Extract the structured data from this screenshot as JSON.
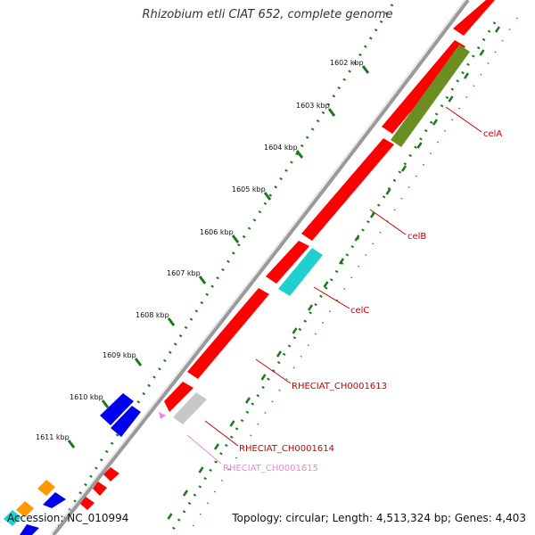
{
  "title": "Rhizobium etli CIAT 652, complete genome",
  "footer": {
    "accession": "Accession: NC_010994",
    "summary": "Topology: circular; Length: 4,513,324 bp; Genes: 4,403"
  },
  "colors": {
    "backbone": "#8a8a8a",
    "tick": "#1a7a1a",
    "gene_red": "#ff0000",
    "gene_olive": "#6b8e23",
    "gene_cyan": "#20d0d0",
    "gene_gray": "#c8c8c8",
    "gene_blue": "#0000ee",
    "gene_orange": "#ff9900",
    "gene_pink": "#ee82ee",
    "label_red": "#cc0000",
    "label_pink": "#ee88cc"
  },
  "ticks": [
    "1602 kbp",
    "1603 kbp",
    "1604 kbp",
    "1605 kbp",
    "1606 kbp",
    "1607 kbp",
    "1608 kbp",
    "1609 kbp",
    "1610 kbp",
    "1611 kbp"
  ],
  "gene_labels": [
    {
      "name": "celA",
      "color": "label_red"
    },
    {
      "name": "celB",
      "color": "label_red"
    },
    {
      "name": "celC",
      "color": "label_red"
    },
    {
      "name": "RHECIAT_CH0001613",
      "color": "label_red"
    },
    {
      "name": "RHECIAT_CH0001614",
      "color": "label_red"
    },
    {
      "name": "RHECIAT_CH0001615",
      "color": "label_pink"
    }
  ]
}
